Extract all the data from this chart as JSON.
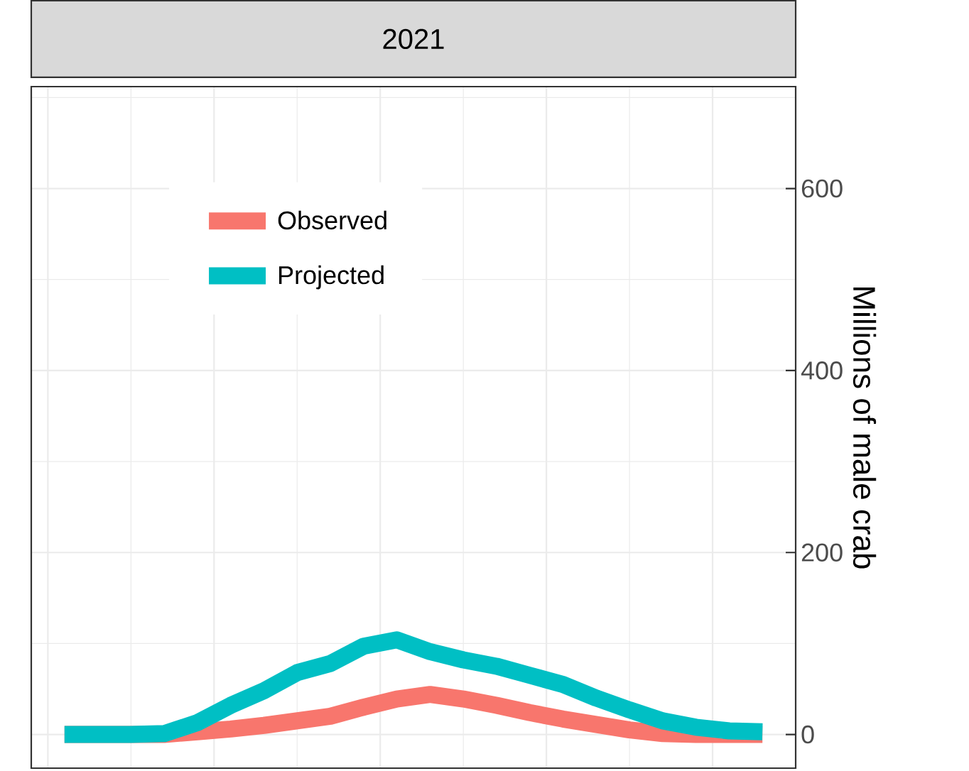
{
  "chart_data": {
    "type": "line",
    "title": "2021",
    "ylabel": "Millions of male crab",
    "categories": [
      null,
      null,
      null,
      null,
      null,
      null,
      null,
      null,
      null,
      null,
      null,
      null,
      null,
      null,
      null,
      null,
      null,
      null,
      null,
      null,
      null,
      null
    ],
    "series": [
      {
        "name": "Observed",
        "color": "#f8766d",
        "values": [
          0,
          0,
          0,
          0,
          3,
          6,
          10,
          15,
          20,
          30,
          39,
          44,
          39,
          32,
          24,
          17,
          11,
          5,
          1,
          0,
          0,
          0
        ]
      },
      {
        "name": "Projected",
        "color": "#00bfc4",
        "values": [
          0,
          0,
          0,
          1,
          13,
          32,
          48,
          68,
          78,
          97,
          104,
          91,
          82,
          75,
          65,
          55,
          40,
          27,
          15,
          8,
          4,
          3
        ]
      }
    ],
    "ylim": [
      -37,
      712
    ],
    "yticks": [
      0,
      200,
      400,
      600
    ],
    "tick_labels": "y",
    "grid": true,
    "legend": "top left",
    "marker": "none",
    "line_style": "solid"
  }
}
